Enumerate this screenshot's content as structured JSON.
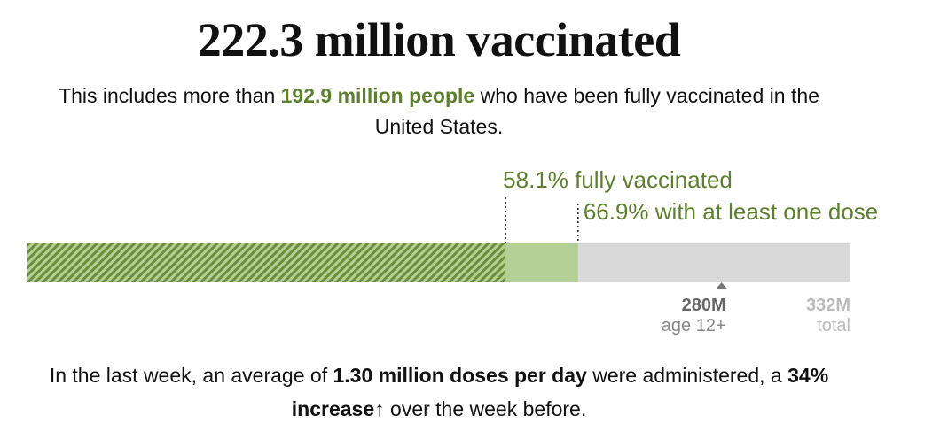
{
  "headline": "222.3 million vaccinated",
  "subline": {
    "prefix": "This includes more than ",
    "highlight": "192.9 million people",
    "suffix": " who have been fully vaccinated in the United States."
  },
  "footer": {
    "part1": "In the last week, an average of ",
    "bold1": "1.30 million doses per day",
    "part2": " were administered, a ",
    "bold2": "34% increase",
    "arrow": "↑",
    "part3": " over the week before."
  },
  "colors": {
    "fully": "#6a8e3a",
    "partial": "#b4d095",
    "remaining": "#d9d9d9",
    "label_green": "#5e7f2f",
    "marker": "#777777",
    "total_gray": "#bbbbbb"
  },
  "chart_data": {
    "type": "bar",
    "orientation": "horizontal-stacked",
    "total_label": "332M",
    "total_sub": "total",
    "total_population_millions": 332,
    "segments": [
      {
        "name": "fully vaccinated",
        "percent": 58.1,
        "pattern": "hatched"
      },
      {
        "name": "at least one dose",
        "percent": 66.9,
        "pattern": "solid"
      }
    ],
    "annotations": [
      {
        "text": "58.1% fully vaccinated",
        "percent": 58.1
      },
      {
        "text": "66.9% with at least one dose",
        "percent": 66.9
      }
    ],
    "marker": {
      "label": "280M",
      "sub": "age 12+",
      "value_millions": 280
    }
  }
}
